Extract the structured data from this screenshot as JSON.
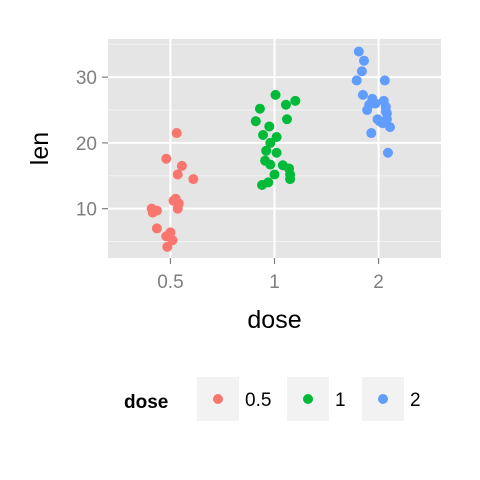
{
  "chart_data": {
    "type": "scatter",
    "title": "",
    "xlabel": "dose",
    "ylabel": "len",
    "categories": [
      "0.5",
      "1",
      "2"
    ],
    "ylim": [
      2.5,
      35.8
    ],
    "yticks": [
      10,
      20,
      30
    ],
    "grid": true,
    "legend": {
      "title": "dose",
      "position": "bottom"
    },
    "series": [
      {
        "name": "0.5",
        "color": "#F8766D",
        "points": [
          {
            "x": 0.56,
            "y": 21.5
          },
          {
            "x": 0.46,
            "y": 17.6
          },
          {
            "x": 0.61,
            "y": 16.5
          },
          {
            "x": 0.57,
            "y": 15.2
          },
          {
            "x": 0.72,
            "y": 14.5
          },
          {
            "x": 0.55,
            "y": 11.5
          },
          {
            "x": 0.53,
            "y": 11.2
          },
          {
            "x": 0.58,
            "y": 10.8
          },
          {
            "x": 0.57,
            "y": 10.0
          },
          {
            "x": 0.32,
            "y": 10.0
          },
          {
            "x": 0.37,
            "y": 9.7
          },
          {
            "x": 0.33,
            "y": 9.4
          },
          {
            "x": 0.37,
            "y": 7.0
          },
          {
            "x": 0.5,
            "y": 6.4
          },
          {
            "x": 0.46,
            "y": 5.8
          },
          {
            "x": 0.52,
            "y": 5.2
          },
          {
            "x": 0.47,
            "y": 4.2
          }
        ]
      },
      {
        "name": "1",
        "color": "#00BA38",
        "points": [
          {
            "x": 1.01,
            "y": 27.3
          },
          {
            "x": 1.2,
            "y": 26.4
          },
          {
            "x": 1.11,
            "y": 25.8
          },
          {
            "x": 0.86,
            "y": 25.2
          },
          {
            "x": 0.82,
            "y": 23.3
          },
          {
            "x": 1.12,
            "y": 23.6
          },
          {
            "x": 0.95,
            "y": 22.5
          },
          {
            "x": 0.89,
            "y": 21.2
          },
          {
            "x": 1.02,
            "y": 20.9
          },
          {
            "x": 0.96,
            "y": 20.0
          },
          {
            "x": 0.92,
            "y": 18.8
          },
          {
            "x": 1.02,
            "y": 18.5
          },
          {
            "x": 0.91,
            "y": 17.3
          },
          {
            "x": 0.96,
            "y": 16.7
          },
          {
            "x": 1.08,
            "y": 16.6
          },
          {
            "x": 1.14,
            "y": 16.1
          },
          {
            "x": 1.15,
            "y": 15.2
          },
          {
            "x": 1.0,
            "y": 15.2
          },
          {
            "x": 1.15,
            "y": 14.5
          },
          {
            "x": 0.94,
            "y": 14.0
          },
          {
            "x": 0.88,
            "y": 13.6
          }
        ]
      },
      {
        "name": "2",
        "color": "#619CFF",
        "points": [
          {
            "x": 1.81,
            "y": 33.9
          },
          {
            "x": 1.86,
            "y": 32.5
          },
          {
            "x": 1.84,
            "y": 30.9
          },
          {
            "x": 1.79,
            "y": 29.5
          },
          {
            "x": 2.06,
            "y": 29.5
          },
          {
            "x": 1.85,
            "y": 27.3
          },
          {
            "x": 1.94,
            "y": 26.7
          },
          {
            "x": 2.05,
            "y": 26.4
          },
          {
            "x": 1.97,
            "y": 26.0
          },
          {
            "x": 1.91,
            "y": 25.8
          },
          {
            "x": 2.07,
            "y": 25.5
          },
          {
            "x": 1.89,
            "y": 25.0
          },
          {
            "x": 2.07,
            "y": 24.8
          },
          {
            "x": 2.08,
            "y": 24.5
          },
          {
            "x": 1.99,
            "y": 23.6
          },
          {
            "x": 2.08,
            "y": 23.6
          },
          {
            "x": 2.01,
            "y": 23.3
          },
          {
            "x": 2.04,
            "y": 23.0
          },
          {
            "x": 2.11,
            "y": 22.4
          },
          {
            "x": 1.93,
            "y": 21.5
          },
          {
            "x": 2.09,
            "y": 18.5
          }
        ]
      }
    ]
  }
}
